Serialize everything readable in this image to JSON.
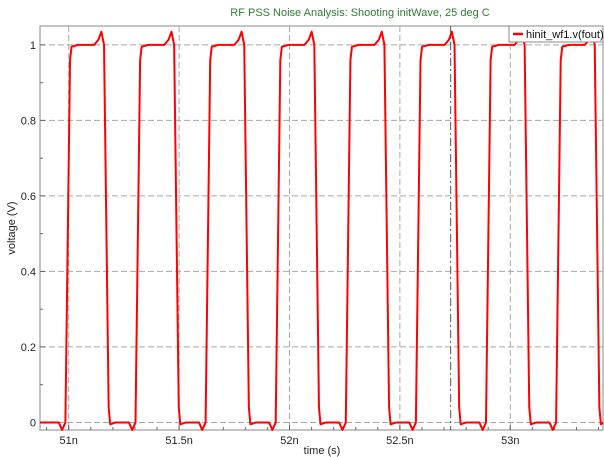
{
  "chart_data": {
    "type": "line",
    "title": "RF PSS Noise Analysis: Shooting initWave, 25 deg C",
    "xlabel": "time (s)",
    "ylabel": "voltage (V)",
    "xlim": [
      50.87,
      53.42
    ],
    "ylim": [
      -0.02,
      1.05
    ],
    "x_unit": "ns",
    "x_ticks": [
      51.0,
      51.5,
      52.0,
      52.5,
      53.0
    ],
    "x_tick_labels": [
      "51n",
      "51.5n",
      "52n",
      "52.5n",
      "53n"
    ],
    "y_ticks": [
      0,
      0.2,
      0.4,
      0.6,
      0.8,
      1.0
    ],
    "y_tick_labels": [
      "0",
      "0.2",
      "0.4",
      "0.6",
      "0.8",
      "1"
    ],
    "grid": true,
    "legend_position": "top-right",
    "cursor_x": 52.73,
    "series": [
      {
        "name": "hinit_wf1.v(fout)",
        "color": "#ff0000",
        "period_ns": 0.3175,
        "first_rise_ns": 50.985,
        "rise_time_ns": 0.028,
        "fall_time_ns": 0.028,
        "high_duration_ns": 0.175,
        "high_level": 1.0,
        "low_level": 0.0,
        "overshoot": 0.035,
        "undershoot": -0.02
      }
    ]
  }
}
